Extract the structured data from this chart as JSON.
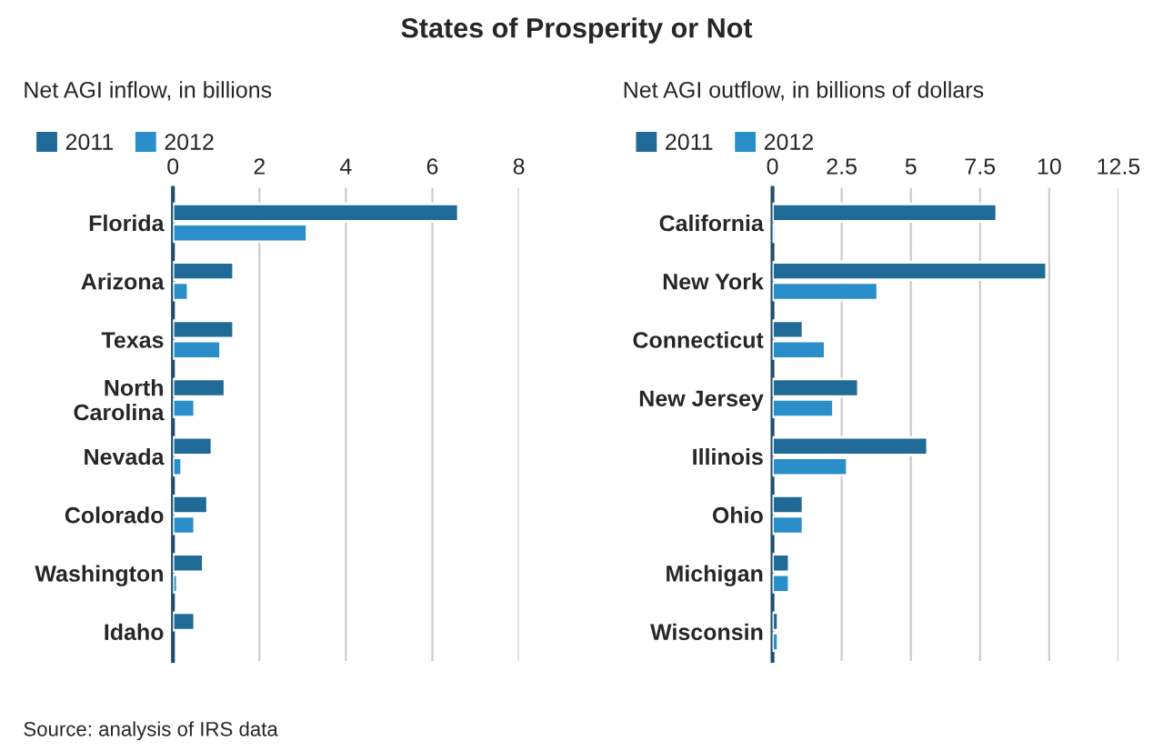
{
  "chart_data": [
    {
      "type": "bar",
      "orientation": "horizontal",
      "title": "States of Prosperity or Not",
      "subtitle": "Net AGI inflow, in billions",
      "categories": [
        "Florida",
        "Arizona",
        "Texas",
        "North\nCarolina",
        "Nevada",
        "Colorado",
        "Washington",
        "Idaho"
      ],
      "series": [
        {
          "name": "2011",
          "color": "#1f6a96",
          "values": [
            6.6,
            1.4,
            1.4,
            1.2,
            0.9,
            0.8,
            0.7,
            0.5
          ]
        },
        {
          "name": "2012",
          "color": "#2a8fc8",
          "values": [
            3.1,
            0.35,
            1.1,
            0.5,
            0.2,
            0.5,
            0.1,
            null
          ]
        }
      ],
      "xlim": [
        0,
        8
      ],
      "xticks": [
        0,
        2,
        4,
        6,
        8
      ],
      "grid": "x",
      "legend": "top left",
      "annotations": [
        "Source: analysis of IRS data"
      ]
    },
    {
      "type": "bar",
      "orientation": "horizontal",
      "subtitle": "Net AGI outflow, in billions of dollars",
      "categories": [
        "California",
        "New York",
        "Connecticut",
        "New Jersey",
        "Illinois",
        "Ohio",
        "Michigan",
        "Wisconsin"
      ],
      "series": [
        {
          "name": "2011",
          "color": "#1f6a96",
          "values": [
            8.1,
            9.9,
            1.1,
            3.1,
            5.6,
            1.1,
            0.6,
            0.2
          ]
        },
        {
          "name": "2012",
          "color": "#2a8fc8",
          "values": [
            0.1,
            3.8,
            1.9,
            2.2,
            2.7,
            1.1,
            0.6,
            0.2
          ]
        }
      ],
      "xlim": [
        0,
        12.5
      ],
      "xticks": [
        0,
        2.5,
        5,
        7.5,
        10,
        12.5
      ],
      "grid": "x",
      "legend": "top left"
    }
  ]
}
